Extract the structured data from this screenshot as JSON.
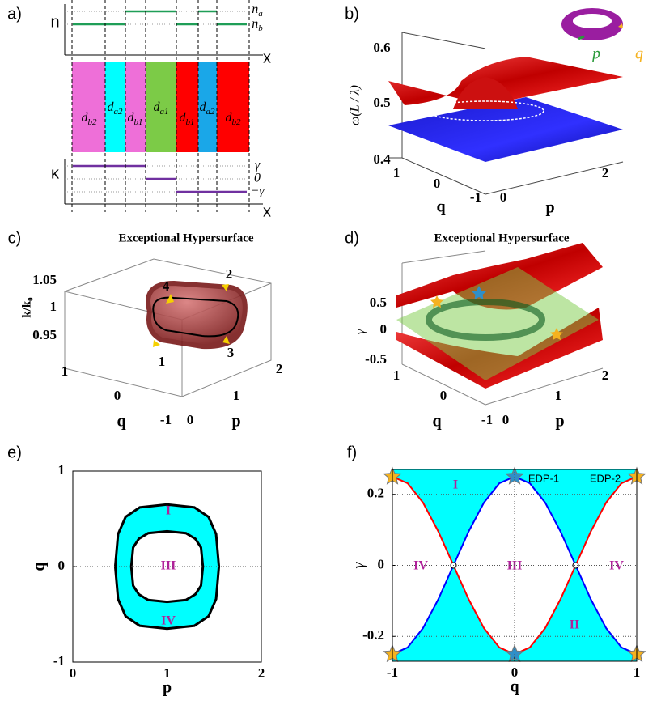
{
  "panel_a": {
    "label": "a)",
    "n_axis": "n",
    "x_axis_top": "x",
    "n_levels": [
      {
        "base": "n",
        "sub": "a"
      },
      {
        "base": "n",
        "sub": "b"
      }
    ],
    "layers": [
      {
        "base": "d",
        "sub": "b2"
      },
      {
        "base": "d",
        "sub": "a2"
      },
      {
        "base": "d",
        "sub": "b1"
      },
      {
        "base": "d",
        "sub": "a1"
      },
      {
        "base": "d",
        "sub": "b1"
      },
      {
        "base": "d",
        "sub": "a2"
      },
      {
        "base": "d",
        "sub": "b2"
      }
    ],
    "kappa_axis": "κ",
    "kappa_levels": [
      "γ",
      "0",
      "−γ"
    ],
    "x_axis_bottom": "x"
  },
  "panel_b": {
    "label": "b)",
    "zlabel": "ω(L / λ)",
    "zticks": [
      "0.6",
      "0.5",
      "0.4"
    ],
    "qticks": [
      "1",
      "0",
      "-1"
    ],
    "pticks": [
      "0",
      "2"
    ],
    "qlabel": "q",
    "plabel": "p",
    "inset_labels": [
      "p",
      "q"
    ]
  },
  "panel_c": {
    "label": "c)",
    "title": "Exceptional Hypersurface",
    "zlabel": "k/k₀",
    "zticks": [
      "1.05",
      "1",
      "0.95"
    ],
    "qticks": [
      "1",
      "0",
      "-1"
    ],
    "pticks": [
      "0",
      "1",
      "2"
    ],
    "qlabel": "q",
    "plabel": "p",
    "path_labels": [
      "4",
      "2",
      "1",
      "3"
    ]
  },
  "panel_d": {
    "label": "d)",
    "title": "Exceptional Hypersurface",
    "zlabel": "γ",
    "zticks": [
      "0.5",
      "0",
      "-0.5"
    ],
    "qticks": [
      "1",
      "0",
      "-1"
    ],
    "pticks": [
      "0",
      "1",
      "2"
    ],
    "qlabel": "q",
    "plabel": "p"
  },
  "chart_data": [
    {
      "type": "ring",
      "label": "e)",
      "xlabel": "p",
      "ylabel": "q",
      "xlim": [
        0,
        2
      ],
      "ylim": [
        -1,
        1
      ],
      "xticks": [
        0,
        1,
        2
      ],
      "yticks": [
        -1,
        0,
        1
      ],
      "grid": true,
      "fill_color": "#00ffff",
      "series": [
        {
          "color": "#000000",
          "x": [
            1.55,
            1.52,
            1.44,
            1.29,
            1,
            0.71,
            0.56,
            0.48,
            0.45,
            0.48,
            0.56,
            0.71,
            1,
            1.29,
            1.44,
            1.52
          ],
          "values": [
            0,
            0.34,
            0.52,
            0.62,
            0.65,
            0.62,
            0.52,
            0.34,
            0,
            -0.34,
            -0.52,
            -0.62,
            -0.65,
            -0.62,
            -0.52,
            -0.34
          ]
        },
        {
          "color": "#000000",
          "x": [
            1.38,
            1.36,
            1.3,
            1.2,
            1,
            0.8,
            0.7,
            0.64,
            0.62,
            0.64,
            0.7,
            0.8,
            1,
            1.2,
            1.3,
            1.36
          ],
          "values": [
            0,
            0.2,
            0.29,
            0.35,
            0.37,
            0.35,
            0.29,
            0.2,
            0,
            -0.2,
            -0.29,
            -0.35,
            -0.37,
            -0.35,
            -0.29,
            -0.2
          ]
        }
      ],
      "annotations": [
        "I",
        "III",
        "IV"
      ]
    },
    {
      "type": "line",
      "label": "f)",
      "xlabel": "q",
      "ylabel": "γ",
      "xlim": [
        -1,
        1
      ],
      "ylim": [
        -0.27,
        0.27
      ],
      "xticks": [
        -1,
        0,
        1
      ],
      "yticks": [
        -0.2,
        0,
        0.2
      ],
      "grid": true,
      "fill_color": "#00ffff",
      "x": [
        -1,
        -0.875,
        -0.75,
        -0.625,
        -0.5,
        -0.375,
        -0.25,
        -0.125,
        0,
        0.125,
        0.25,
        0.375,
        0.5,
        0.625,
        0.75,
        0.875,
        1
      ],
      "series": [
        {
          "color": "#0000ff",
          "values": [
            -0.25,
            -0.231,
            -0.177,
            -0.096,
            0,
            0.096,
            0.177,
            0.231,
            0.25,
            0.231,
            0.177,
            0.096,
            0,
            -0.096,
            -0.177,
            -0.231,
            -0.25
          ]
        },
        {
          "color": "#ff0000",
          "values": [
            0.25,
            0.231,
            0.177,
            0.096,
            0,
            -0.096,
            -0.177,
            -0.231,
            -0.25,
            -0.231,
            -0.177,
            -0.096,
            0,
            0.096,
            0.177,
            0.231,
            0.25
          ]
        }
      ],
      "markers": {
        "x": [
          -1,
          0,
          1,
          -1,
          0,
          1
        ],
        "y": [
          0.25,
          0.25,
          0.25,
          -0.25,
          -0.25,
          -0.25
        ],
        "colors": [
          "#f5b21f",
          "#2f8fc8",
          "#f5b21f",
          "#f5b21f",
          "#2f8fc8",
          "#f5b21f"
        ]
      },
      "crossings": {
        "x": [
          -0.5,
          0.5
        ],
        "y": [
          0,
          0
        ]
      },
      "annotations": [
        "I",
        "II",
        "III",
        "IV",
        "IV",
        "EDP-1",
        "EDP-2"
      ]
    }
  ]
}
